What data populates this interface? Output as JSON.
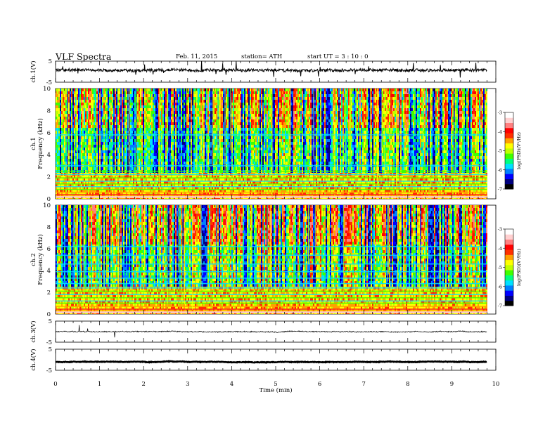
{
  "header": {
    "title": "VLF  Spectra",
    "date": "Feb. 11, 2015",
    "station": "station= ATH",
    "start_ut": "start  UT  =   3  : 10 : 0"
  },
  "chart_data": [
    {
      "type": "line",
      "panel": "ch1-waveform",
      "ylabel": "ch.1(V)",
      "ylim": [
        -5,
        5
      ],
      "ytick_labels": [
        "5",
        "-5"
      ],
      "x_range_min": [
        0,
        9.8
      ],
      "baseline_v": 0.7,
      "color": "#000000"
    },
    {
      "type": "heatmap",
      "panel": "ch1-spectrogram",
      "ylabel_top": "ch.1",
      "ylabel": "Frequency  (kHz)",
      "ylim": [
        0,
        10
      ],
      "ytick_labels": [
        "0",
        "2",
        "4",
        "6",
        "8",
        "10"
      ],
      "x_range_min": [
        0,
        9.8
      ],
      "colorbar": {
        "label": "log(PSD)(V²/Hz)",
        "range": [
          -7,
          -3
        ],
        "tick_labels": [
          "-3",
          "-4",
          "-5",
          "-6",
          "-7"
        ]
      }
    },
    {
      "type": "heatmap",
      "panel": "ch2-spectrogram",
      "ylabel_top": "ch.2",
      "ylabel": "Frequency  (kHz)",
      "ylim": [
        0,
        10
      ],
      "ytick_labels": [
        "0",
        "2",
        "4",
        "6",
        "8",
        "10"
      ],
      "x_range_min": [
        0,
        9.8
      ],
      "colorbar": {
        "label": "log(PSD)(V²/Hz)",
        "range": [
          -7,
          -3
        ],
        "tick_labels": [
          "-3",
          "-4",
          "-5",
          "-6",
          "-7"
        ]
      }
    },
    {
      "type": "line",
      "panel": "ch3-waveform",
      "ylabel": "ch.3(V)",
      "ylim": [
        -5,
        5
      ],
      "ytick_labels": [
        "5",
        "-5"
      ],
      "x_range_min": [
        0,
        9.8
      ],
      "baseline_v": 0,
      "color": "#000000"
    },
    {
      "type": "line",
      "panel": "ch4-waveform",
      "ylabel": "ch.4(V)",
      "ylim": [
        -5,
        5
      ],
      "ytick_labels": [
        "5",
        "-5"
      ],
      "x_range_min": [
        0,
        9.8
      ],
      "baseline_v": -1,
      "color": "#000000"
    }
  ],
  "xaxis": {
    "label": "Time  (min)",
    "lim": [
      0,
      10
    ],
    "tick_labels": [
      "0",
      "1",
      "2",
      "3",
      "4",
      "5",
      "6",
      "7",
      "8",
      "9",
      "10"
    ]
  },
  "colormap": [
    "#000000",
    "#000080",
    "#0000ff",
    "#0080ff",
    "#00e0ff",
    "#00ff80",
    "#40ff00",
    "#c0ff00",
    "#ffff00",
    "#ffa000",
    "#ff3000",
    "#ff0000",
    "#ff8080",
    "#ffd0d0",
    "#ffffff"
  ]
}
